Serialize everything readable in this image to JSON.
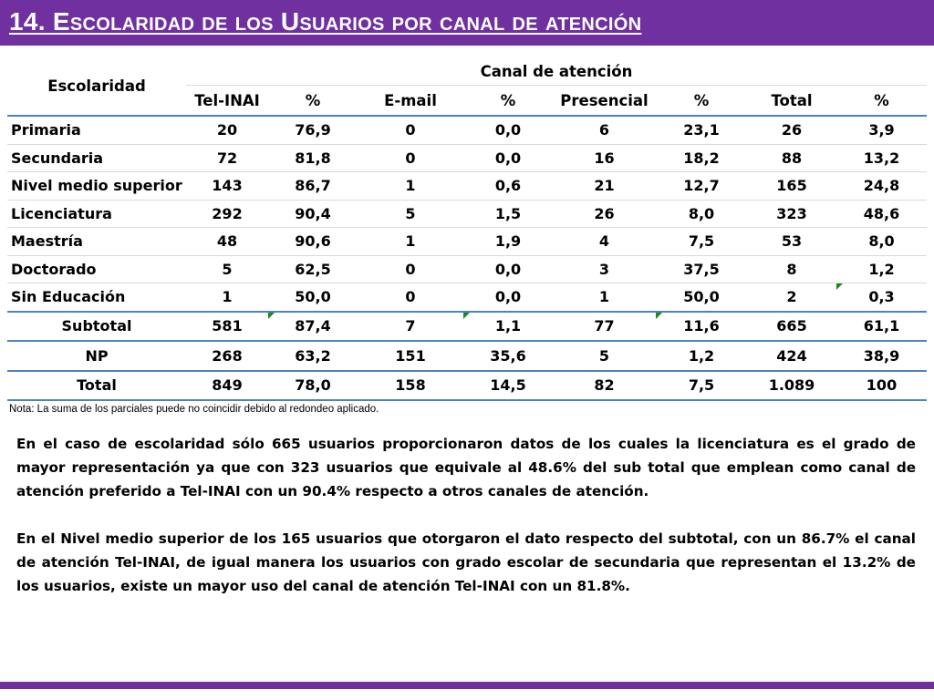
{
  "title": "14. Escolaridad de los Usuarios por canal de atención",
  "table": {
    "group_header": "Escolaridad",
    "canal_header": "Canal de atención",
    "columns": [
      "Tel-INAI",
      "%",
      "E-mail",
      "%",
      "Presencial",
      "%",
      "Total",
      "%"
    ],
    "rows": [
      {
        "label": "Primaria",
        "values": [
          "20",
          "76,9",
          "0",
          "0,0",
          "6",
          "23,1",
          "26",
          "3,9"
        ]
      },
      {
        "label": "Secundaria",
        "values": [
          "72",
          "81,8",
          "0",
          "0,0",
          "16",
          "18,2",
          "88",
          "13,2"
        ]
      },
      {
        "label": "Nivel medio superior",
        "values": [
          "143",
          "86,7",
          "1",
          "0,6",
          "21",
          "12,7",
          "165",
          "24,8"
        ]
      },
      {
        "label": "Licenciatura",
        "values": [
          "292",
          "90,4",
          "5",
          "1,5",
          "26",
          "8,0",
          "323",
          "48,6"
        ]
      },
      {
        "label": "Maestría",
        "values": [
          "48",
          "90,6",
          "1",
          "1,9",
          "4",
          "7,5",
          "53",
          "8,0"
        ]
      },
      {
        "label": "Doctorado",
        "values": [
          "5",
          "62,5",
          "0",
          "0,0",
          "3",
          "37,5",
          "8",
          "1,2"
        ]
      },
      {
        "label": "Sin Educación",
        "values": [
          "1",
          "50,0",
          "0",
          "0,0",
          "1",
          "50,0",
          "2",
          "0,3"
        ]
      }
    ],
    "subtotal": {
      "label": "Subtotal",
      "values": [
        "581",
        "87,4",
        "7",
        "1,1",
        "77",
        "11,6",
        "665",
        "61,1"
      ]
    },
    "np": {
      "label": "NP",
      "values": [
        "268",
        "63,2",
        "151",
        "35,6",
        "5",
        "1,2",
        "424",
        "38,9"
      ]
    },
    "total": {
      "label": "Total",
      "values": [
        "849",
        "78,0",
        "158",
        "14,5",
        "82",
        "7,5",
        "1.089",
        "100"
      ]
    }
  },
  "note": "Nota: La suma de los parciales puede no coincidir debido al redondeo aplicado.",
  "paragraphs": [
    "En el caso de escolaridad sólo 665 usuarios proporcionaron datos de los cuales la licenciatura es el grado de mayor representación ya que con 323 usuarios que equivale al 48.6% del sub total que emplean como canal de atención preferido a Tel-INAI con un 90.4% respecto a otros canales de atención.",
    "En el Nivel medio superior de los 165 usuarios que otorgaron el dato respecto del subtotal, con un 86.7% el canal de atención Tel-INAI, de igual manera los usuarios con grado escolar de secundaria que representan el 13.2% de los usuarios, existe un mayor uso del canal de atención Tel-INAI con un 81.8%."
  ],
  "colors": {
    "header_bar": "#7030a0",
    "table_rule": "#4f81bd",
    "error_marker": "#1a8a1a"
  }
}
